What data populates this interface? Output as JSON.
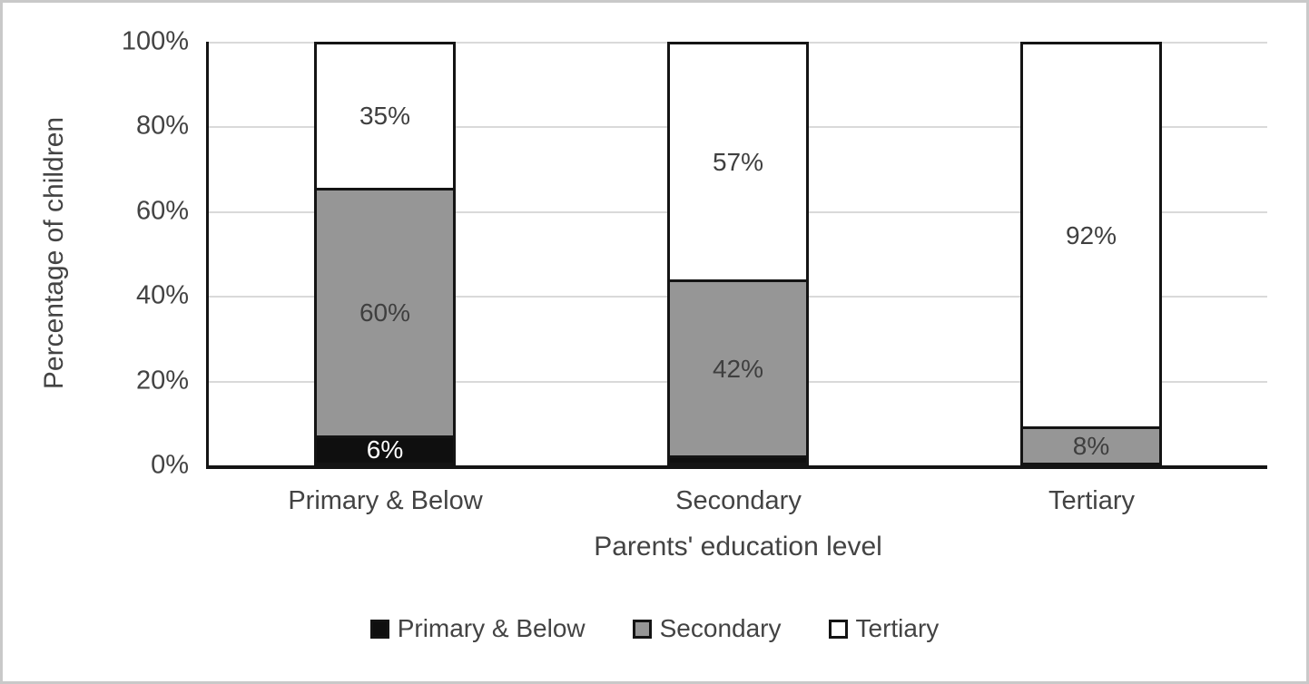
{
  "chart_data": {
    "type": "bar",
    "stacked": true,
    "stacked_unit": "percent",
    "title": "",
    "xlabel": "Parents' education level",
    "ylabel": "Percentage of children",
    "categories": [
      "Primary & Below",
      "Secondary",
      "Tertiary"
    ],
    "yticks": [
      "100%",
      "80%",
      "60%",
      "40%",
      "20%",
      "0%"
    ],
    "ylim": [
      0,
      100
    ],
    "grid": "horizontal",
    "legend_position": "bottom",
    "series": [
      {
        "name": "Primary & Below",
        "fill": "black",
        "values": [
          6,
          1,
          0
        ]
      },
      {
        "name": "Secondary",
        "fill": "gray",
        "values": [
          60,
          42,
          8
        ]
      },
      {
        "name": "Tertiary",
        "fill": "white",
        "values": [
          35,
          57,
          92
        ]
      }
    ],
    "stacks": [
      {
        "category": "Primary & Below",
        "segments": [
          {
            "series": "Tertiary",
            "value": 35,
            "fill": "white",
            "label": "35%",
            "label_color": "#3f3f3f"
          },
          {
            "series": "Secondary",
            "value": 60,
            "fill": "gray",
            "label": "60%",
            "label_color": "#3f3f3f"
          },
          {
            "series": "Primary & Below",
            "value": 6,
            "fill": "black",
            "label": "6%",
            "label_color": "#ffffff"
          }
        ]
      },
      {
        "category": "Secondary",
        "segments": [
          {
            "series": "Tertiary",
            "value": 57,
            "fill": "white",
            "label": "57%",
            "label_color": "#3f3f3f"
          },
          {
            "series": "Secondary",
            "value": 42,
            "fill": "gray",
            "label": "42%",
            "label_color": "#3f3f3f"
          },
          {
            "series": "Primary & Below",
            "value": 1,
            "fill": "black",
            "label": "",
            "label_color": "#ffffff"
          }
        ]
      },
      {
        "category": "Tertiary",
        "segments": [
          {
            "series": "Tertiary",
            "value": 92,
            "fill": "white",
            "label": "92%",
            "label_color": "#3f3f3f"
          },
          {
            "series": "Secondary",
            "value": 8,
            "fill": "gray",
            "label": "8%",
            "label_color": "#3f3f3f"
          }
        ]
      }
    ],
    "colors": {
      "black": "#0f0f0f",
      "gray": "#969696",
      "white": "#ffffff",
      "grid": "#d9d9d9",
      "axis": "#141414",
      "text": "#434343"
    }
  }
}
